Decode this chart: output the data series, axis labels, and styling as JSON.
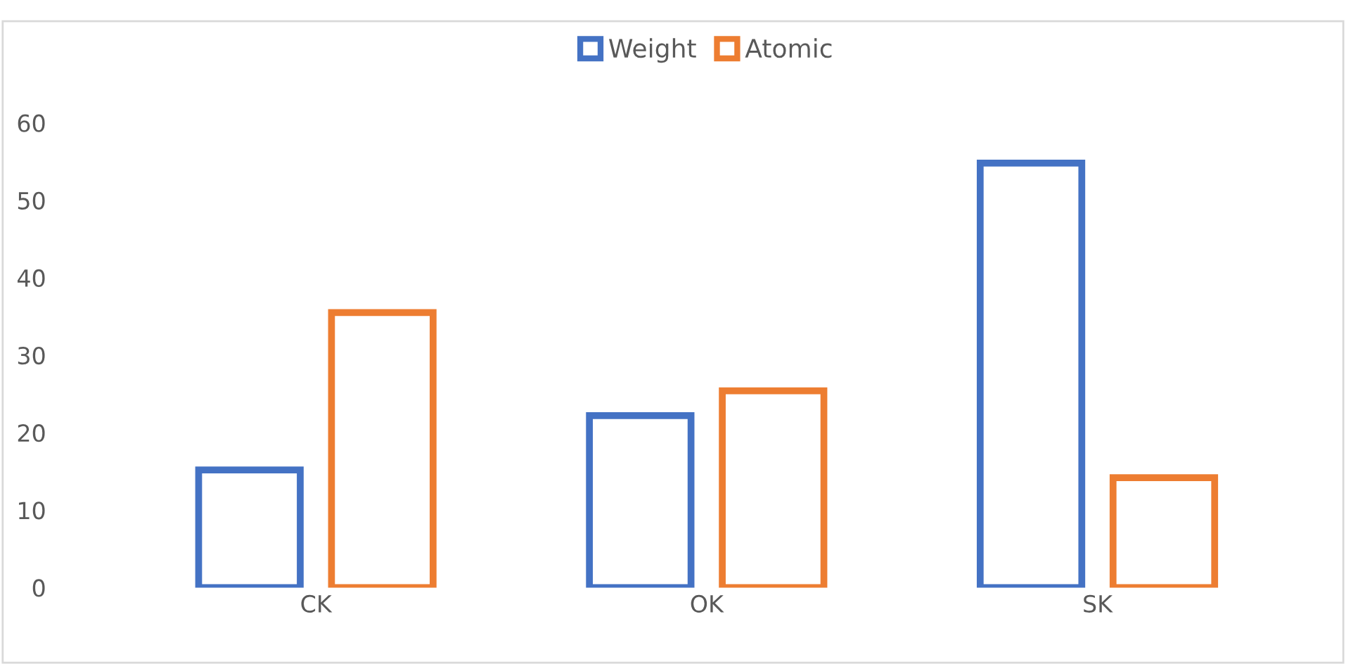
{
  "chart_data": {
    "type": "bar",
    "categories": [
      "CK",
      "OK",
      "SK"
    ],
    "series": [
      {
        "name": "Weight",
        "color": "#4472c4",
        "values": [
          15.2,
          22.2,
          54.8
        ]
      },
      {
        "name": "Atomic",
        "color": "#ed7d31",
        "values": [
          35.5,
          25.4,
          14.2
        ]
      }
    ],
    "ylim": [
      0,
      60
    ],
    "yticks": [
      0,
      10,
      20,
      30,
      40,
      50,
      60
    ],
    "grid": false,
    "legend": "top"
  }
}
